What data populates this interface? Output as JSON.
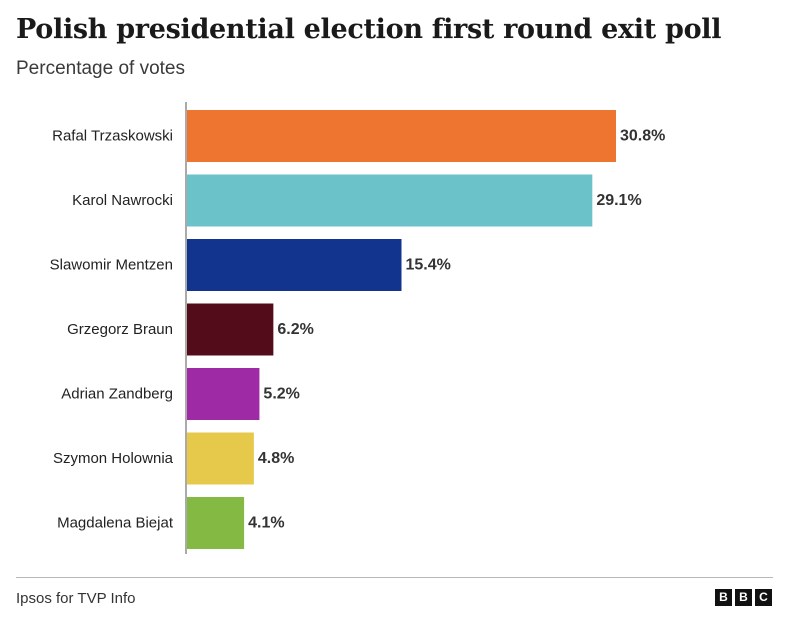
{
  "title": "Polish presidential election first round exit poll",
  "subtitle": "Percentage of votes",
  "source": "Ipsos for TVP Info",
  "logo": [
    "B",
    "B",
    "C"
  ],
  "chart_data": {
    "type": "bar",
    "orientation": "horizontal",
    "categories": [
      "Rafal Trzaskowski",
      "Karol Nawrocki",
      "Slawomir Mentzen",
      "Grzegorz Braun",
      "Adrian Zandberg",
      "Szymon Holownia",
      "Magdalena Biejat"
    ],
    "values": [
      30.8,
      29.1,
      15.4,
      6.2,
      5.2,
      4.8,
      4.1
    ],
    "labels": [
      "30.8%",
      "29.1%",
      "15.4%",
      "6.2%",
      "5.2%",
      "4.8%",
      "4.1%"
    ],
    "colors": [
      "#EE7530",
      "#6BC2C9",
      "#12338E",
      "#520C1A",
      "#9E2AA6",
      "#E6C94B",
      "#84B944"
    ],
    "xlim": [
      0,
      30.8
    ],
    "grid": false,
    "legend": "none"
  }
}
